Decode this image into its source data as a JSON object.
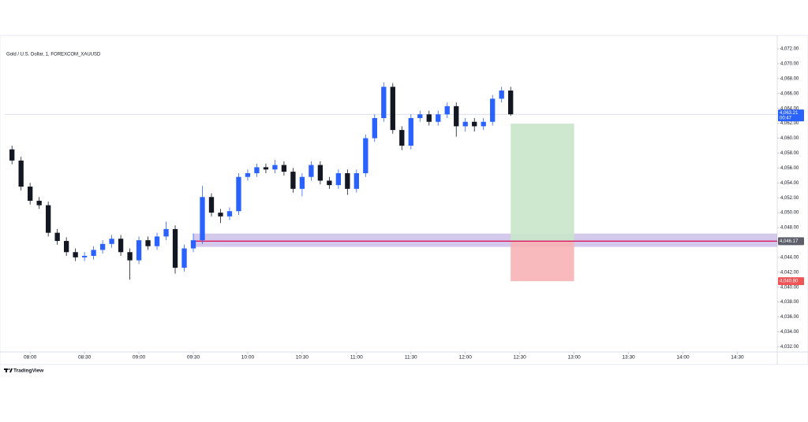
{
  "chart_data": {
    "type": "candlestick",
    "title": "Gold / U.S. Dollar, 1, FOREXCOM_XAUUSD",
    "brand": "TradingView",
    "up_color": "#2962ff",
    "down_color": "#131722",
    "x": [
      "07:50",
      "07:55",
      "08:00",
      "08:05",
      "08:10",
      "08:15",
      "08:20",
      "08:25",
      "08:30",
      "08:35",
      "08:40",
      "08:45",
      "08:50",
      "08:55",
      "09:00",
      "09:05",
      "09:10",
      "09:15",
      "09:20",
      "09:25",
      "09:30",
      "09:35",
      "09:40",
      "09:45",
      "09:50",
      "09:55",
      "10:00",
      "10:05",
      "10:10",
      "10:15",
      "10:20",
      "10:25",
      "10:30",
      "10:35",
      "10:40",
      "10:45",
      "10:50",
      "10:55",
      "11:00",
      "11:05",
      "11:10",
      "11:15",
      "11:20",
      "11:25",
      "11:30",
      "11:35",
      "11:40",
      "11:45",
      "11:50",
      "11:55",
      "12:00",
      "12:05",
      "12:10",
      "12:15",
      "12:20",
      "12:25"
    ],
    "open": [
      4058.5,
      4057.0,
      4053.5,
      4051.6,
      4051.0,
      4047.3,
      4046.2,
      4044.7,
      4044.0,
      4044.2,
      4045.0,
      4045.8,
      4046.5,
      4044.7,
      4043.6,
      4046.3,
      4045.5,
      4046.8,
      4047.8,
      4042.6,
      4045.2,
      4046.3,
      4052.1,
      4050.0,
      4049.5,
      4050.2,
      4054.8,
      4055.3,
      4056.1,
      4055.8,
      4056.4,
      4055.5,
      4053.2,
      4054.8,
      4056.4,
      4054.3,
      4053.7,
      4055.3,
      4053.2,
      4055.3,
      4060.0,
      4062.7,
      4066.9,
      4061.1,
      4059.0,
      4062.7,
      4063.2,
      4062.2,
      4063.2,
      4064.3,
      4061.6,
      4062.2,
      4061.6,
      4062.2,
      4065.3,
      4066.4
    ],
    "high": [
      4059.0,
      4057.5,
      4054.0,
      4052.1,
      4051.5,
      4047.8,
      4046.7,
      4045.2,
      4044.7,
      4045.5,
      4046.3,
      4047.0,
      4047.0,
      4045.2,
      4046.8,
      4046.8,
      4047.3,
      4048.8,
      4048.3,
      4045.7,
      4047.2,
      4053.6,
      4052.6,
      4050.5,
      4050.7,
      4055.3,
      4055.8,
      4056.6,
      4056.6,
      4057.1,
      4056.9,
      4056.0,
      4055.3,
      4056.9,
      4056.9,
      4054.8,
      4055.8,
      4055.8,
      4055.8,
      4060.5,
      4063.2,
      4067.5,
      4067.4,
      4061.6,
      4063.2,
      4063.7,
      4063.7,
      4063.7,
      4064.8,
      4064.8,
      4062.7,
      4062.7,
      4062.7,
      4065.8,
      4066.9,
      4066.9
    ],
    "low": [
      4056.5,
      4053.0,
      4051.1,
      4050.5,
      4046.8,
      4045.7,
      4044.2,
      4043.5,
      4043.5,
      4043.7,
      4044.5,
      4045.3,
      4044.2,
      4041.0,
      4043.1,
      4045.0,
      4045.0,
      4046.3,
      4041.8,
      4042.1,
      4044.7,
      4045.8,
      4049.5,
      4048.6,
      4049.0,
      4049.7,
      4054.3,
      4054.8,
      4055.3,
      4055.3,
      4055.0,
      4052.7,
      4052.2,
      4054.3,
      4053.8,
      4053.2,
      4053.2,
      4052.4,
      4052.7,
      4054.8,
      4059.5,
      4062.2,
      4060.6,
      4058.4,
      4058.5,
      4062.2,
      4061.7,
      4061.7,
      4062.7,
      4060.2,
      4060.9,
      4060.9,
      4061.1,
      4061.7,
      4064.8,
      4063.0
    ],
    "close": [
      4057.0,
      4053.5,
      4051.6,
      4051.0,
      4047.3,
      4046.2,
      4044.7,
      4044.0,
      4044.2,
      4045.0,
      4045.8,
      4046.5,
      4044.7,
      4043.6,
      4046.3,
      4045.5,
      4046.8,
      4047.8,
      4042.6,
      4045.2,
      4046.3,
      4052.1,
      4050.0,
      4049.5,
      4050.2,
      4054.8,
      4055.3,
      4056.1,
      4055.8,
      4056.4,
      4055.5,
      4053.2,
      4054.8,
      4056.4,
      4054.3,
      4053.7,
      4055.3,
      4053.2,
      4055.3,
      4060.0,
      4062.7,
      4066.9,
      4061.1,
      4059.0,
      4062.7,
      4063.2,
      4062.2,
      4063.2,
      4064.3,
      4061.6,
      4062.2,
      4061.6,
      4062.2,
      4065.3,
      4066.4,
      4063.21
    ],
    "xlim": [
      "07:46",
      "14:52"
    ],
    "xticks": [
      "08:00",
      "08:30",
      "09:00",
      "09:30",
      "10:00",
      "10:30",
      "11:00",
      "11:30",
      "12:00",
      "12:30",
      "13:00",
      "13:30",
      "14:00",
      "14:30"
    ],
    "ylim": [
      4031.3,
      4073.8
    ],
    "yticks": [
      {
        "value": 4032,
        "label": "4,032.00"
      },
      {
        "value": 4034,
        "label": "4,034.00"
      },
      {
        "value": 4036,
        "label": "4,036.00"
      },
      {
        "value": 4038,
        "label": "4,038.00"
      },
      {
        "value": 4040,
        "label": "4,040.00"
      },
      {
        "value": 4042,
        "label": "4,042.00"
      },
      {
        "value": 4044,
        "label": "4,044.00"
      },
      {
        "value": 4046,
        "label": "4,046.00"
      },
      {
        "value": 4048,
        "label": "4,048.00"
      },
      {
        "value": 4050,
        "label": "4,050.00"
      },
      {
        "value": 4052,
        "label": "4,052.00"
      },
      {
        "value": 4054,
        "label": "4,054.00"
      },
      {
        "value": 4056,
        "label": "4,056.00"
      },
      {
        "value": 4058,
        "label": "4,058.00"
      },
      {
        "value": 4060,
        "label": "4,060.00"
      },
      {
        "value": 4062,
        "label": "4,062.00"
      },
      {
        "value": 4064,
        "label": "4,064.00"
      },
      {
        "value": 4066,
        "label": "4,066.00"
      },
      {
        "value": 4068,
        "label": "4,068.00"
      },
      {
        "value": 4070,
        "label": "4,070.00"
      },
      {
        "value": 4072,
        "label": "4,072.00"
      }
    ],
    "grid": false,
    "last_price": {
      "value": 4063.21,
      "label": "4,063.21",
      "countdown": "00:47",
      "color": "#2962ff"
    },
    "zone": {
      "start": "09:30",
      "low": 4045.4,
      "high": 4047.2,
      "color": "#b39ddb"
    },
    "position": {
      "start": "12:25",
      "end": "13:00",
      "entry": 4046.17,
      "entry_label": "4,046.17",
      "stop": 4040.8,
      "stop_label": "4,040.80",
      "target": 4061.95,
      "entry_color": "#d81b60",
      "target_color": "#c8e6c9",
      "stop_color": "#f7b3b5"
    }
  }
}
